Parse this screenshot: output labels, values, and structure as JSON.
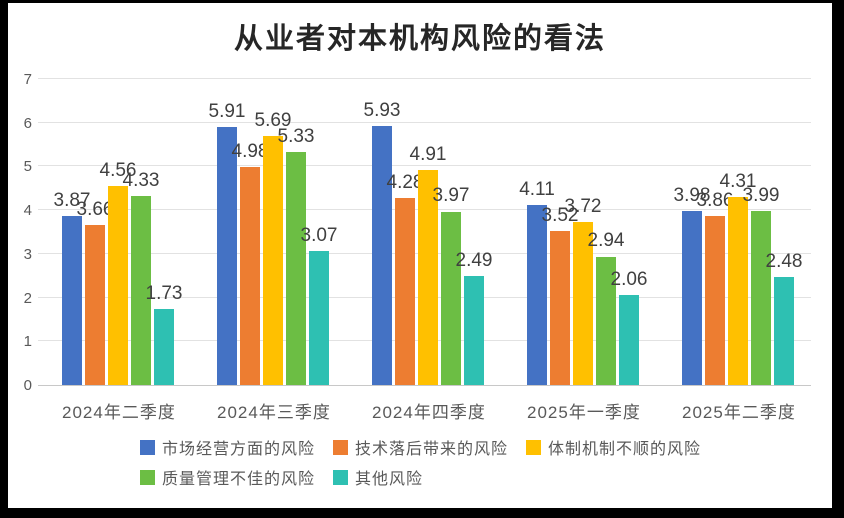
{
  "frame_color": "#000000",
  "background_color": "#ffffff",
  "text_colors": {
    "title": "#262626",
    "data_label": "#404040",
    "axis_label": "#595959",
    "gridline": "#e2e2e2",
    "axis_line": "#c8c8c8"
  },
  "chart_data": {
    "type": "bar",
    "title": "从业者对本机构风险的看法",
    "categories": [
      "2024年二季度",
      "2024年三季度",
      "2024年四季度",
      "2025年一季度",
      "2025年二季度"
    ],
    "series": [
      {
        "name": "市场经营方面的风险",
        "color": "#4472C4",
        "values": [
          3.87,
          5.91,
          5.93,
          4.11,
          3.98
        ]
      },
      {
        "name": "技术落后带来的风险",
        "color": "#ED7D31",
        "values": [
          3.66,
          4.98,
          4.28,
          3.52,
          3.86
        ]
      },
      {
        "name": "体制机制不顺的风险",
        "color": "#FFC000",
        "values": [
          4.56,
          5.69,
          4.91,
          3.72,
          4.31
        ]
      },
      {
        "name": "质量管理不佳的风险",
        "color": "#6CBE44",
        "values": [
          4.33,
          5.33,
          3.97,
          2.94,
          3.99
        ]
      },
      {
        "name": "其他风险",
        "color": "#2EC0B2",
        "values": [
          1.73,
          3.07,
          2.49,
          2.06,
          2.48
        ]
      }
    ],
    "xlabel": "",
    "ylabel": "",
    "ylim": [
      0,
      7
    ],
    "yticks": [
      0,
      1,
      2,
      3,
      4,
      5,
      6,
      7
    ],
    "grid": true,
    "value_labels": true,
    "value_label_decimals": 2,
    "legend_position": "bottom",
    "legend_rows": [
      [
        0,
        1,
        2
      ],
      [
        3,
        4
      ]
    ]
  }
}
